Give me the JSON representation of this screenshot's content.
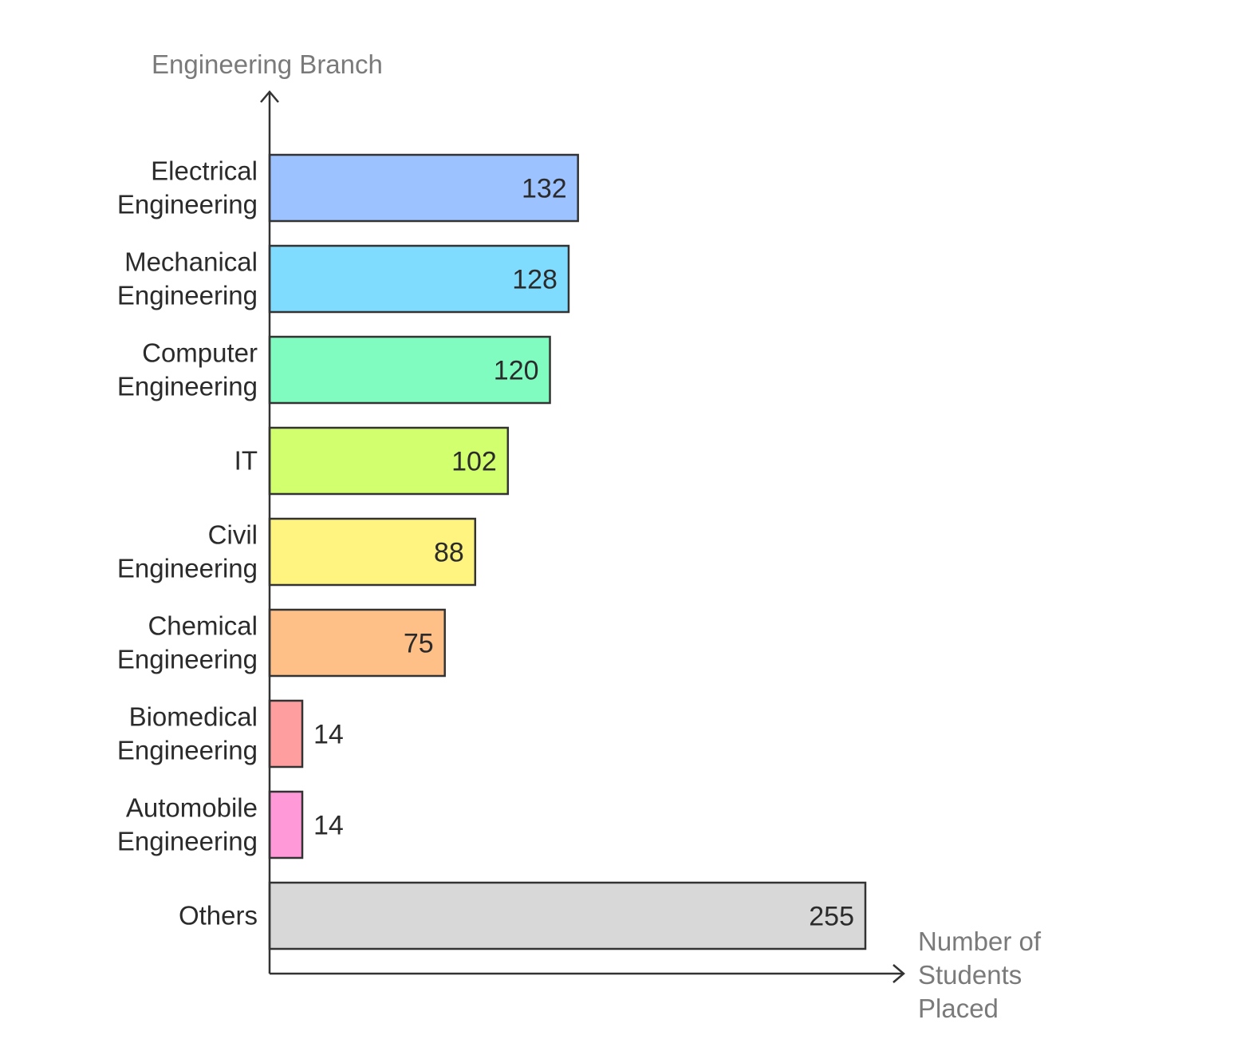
{
  "chart_data": {
    "type": "bar",
    "orientation": "horizontal",
    "title": "",
    "ylabel": "Engineering Branch",
    "xlabel": [
      "Number of",
      "Students",
      "Placed"
    ],
    "categories": [
      [
        "Electrical",
        "Engineering"
      ],
      [
        "Mechanical",
        "Engineering"
      ],
      [
        "Computer",
        "Engineering"
      ],
      [
        "IT"
      ],
      [
        "Civil",
        "Engineering"
      ],
      [
        "Chemical",
        "Engineering"
      ],
      [
        "Biomedical",
        "Engineering"
      ],
      [
        "Automobile",
        "Engineering"
      ],
      [
        "Others"
      ]
    ],
    "values": [
      132,
      128,
      120,
      102,
      88,
      75,
      14,
      14,
      255
    ],
    "value_labels": [
      "132",
      "128",
      "120",
      "102",
      "88",
      "75",
      "14",
      "14",
      "255"
    ],
    "colors": [
      "#9cc2ff",
      "#80dcff",
      "#80fcc0",
      "#d2ff6e",
      "#fff480",
      "#ffc088",
      "#ff9e9e",
      "#ff99d8",
      "#d8d8d8"
    ],
    "xlim": [
      0,
      272
    ],
    "grid": false,
    "legend": "none"
  }
}
